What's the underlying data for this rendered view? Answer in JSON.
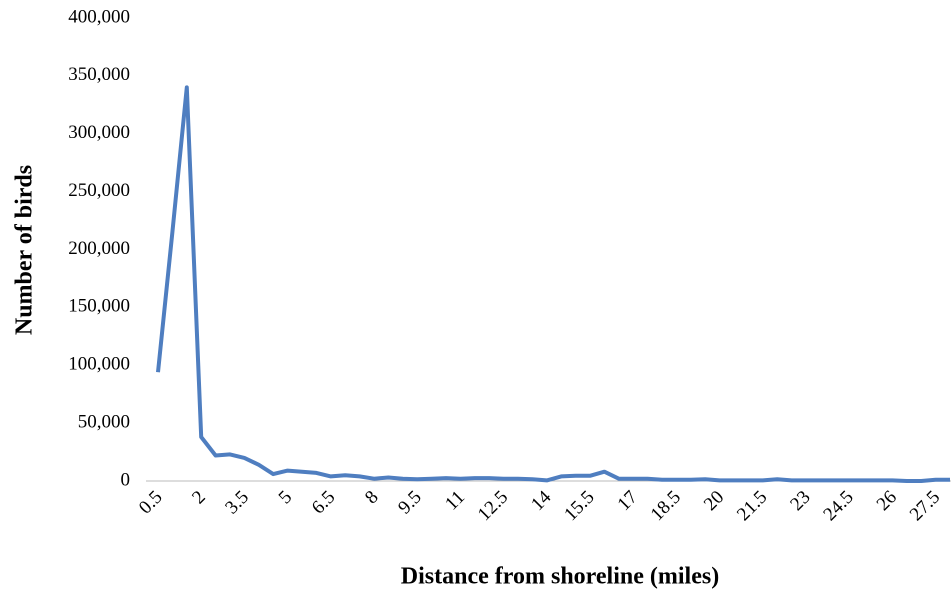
{
  "chart_data": {
    "type": "line",
    "x_label": "Distance from shoreline (miles)",
    "y_label": "Number of birds",
    "categories": [
      "0.5",
      null,
      null,
      "2",
      null,
      null,
      "3.5",
      null,
      null,
      "5",
      null,
      null,
      "6.5",
      null,
      null,
      "8",
      null,
      null,
      "9.5",
      null,
      null,
      "11",
      null,
      null,
      "12.5",
      null,
      null,
      "14",
      null,
      null,
      "15.5",
      null,
      null,
      "17",
      null,
      null,
      "18.5",
      null,
      null,
      "20",
      null,
      null,
      "21.5",
      null,
      null,
      "23",
      null,
      null,
      "24.5",
      null,
      null,
      "26",
      null,
      null,
      "27.5",
      null
    ],
    "series": [
      {
        "name": "Number of birds",
        "color": "#4f7ec0",
        "values": [
          94000,
          215000,
          340000,
          38000,
          22000,
          23000,
          20000,
          14000,
          6000,
          9000,
          8000,
          7000,
          4000,
          5000,
          4000,
          2000,
          3000,
          2000,
          1500,
          2000,
          2500,
          2000,
          2500,
          2500,
          2000,
          2000,
          1500,
          500,
          4000,
          4500,
          4500,
          8000,
          2000,
          2000,
          2000,
          1000,
          1000,
          1000,
          1500,
          500,
          500,
          500,
          500,
          1500,
          500,
          500,
          500,
          500,
          500,
          500,
          500,
          500,
          0,
          0,
          1000,
          1000
        ]
      }
    ],
    "ylim": [
      0,
      400000
    ],
    "yticks": [
      0,
      {
        "value": 50000,
        "label": "50,000"
      },
      {
        "value": 100000,
        "label": "100,000"
      },
      {
        "value": 150000,
        "label": "150,000"
      },
      {
        "value": 200000,
        "label": "200,000"
      },
      {
        "value": 250000,
        "label": "250,000"
      },
      {
        "value": 300000,
        "label": "300,000"
      },
      {
        "value": 350000,
        "label": "350,000"
      },
      {
        "value": 400000,
        "label": "400,000"
      }
    ],
    "grid": false
  }
}
